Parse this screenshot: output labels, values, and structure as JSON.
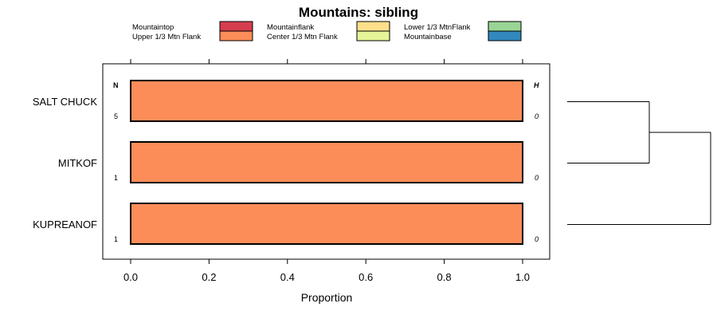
{
  "chart_data": {
    "type": "bar",
    "orientation": "horizontal",
    "stacked": true,
    "title": "Mountains: sibling",
    "xlabel": "Proportion",
    "ylabel": "",
    "xlim": [
      0,
      1
    ],
    "xticks": [
      0.0,
      0.2,
      0.4,
      0.6,
      0.8,
      1.0
    ],
    "xtick_labels": [
      "0.0",
      "0.2",
      "0.4",
      "0.6",
      "0.8",
      "1.0"
    ],
    "categories": [
      "SALT CHUCK",
      "MITKOF",
      "KUPREANOF"
    ],
    "n_header": "N",
    "h_header": "H",
    "n_values": [
      "5",
      "1",
      "1"
    ],
    "h_values": [
      "0",
      "0",
      "0"
    ],
    "legend": [
      {
        "name": "Mountaintop",
        "color": "#d53e4f"
      },
      {
        "name": "Upper 1/3 Mtn Flank",
        "color": "#fc8d59"
      },
      {
        "name": "Mountainflank",
        "color": "#fee08b"
      },
      {
        "name": "Center 1/3 Mtn Flank",
        "color": "#e6f598"
      },
      {
        "name": "Lower 1/3 MtnFlank",
        "color": "#99d594"
      },
      {
        "name": "Mountainbase",
        "color": "#3288bd"
      }
    ],
    "series": [
      {
        "name": "Mountaintop",
        "values": [
          0,
          0,
          0
        ]
      },
      {
        "name": "Upper 1/3 Mtn Flank",
        "values": [
          1.0,
          1.0,
          1.0
        ]
      },
      {
        "name": "Mountainflank",
        "values": [
          0,
          0,
          0
        ]
      },
      {
        "name": "Center 1/3 Mtn Flank",
        "values": [
          0,
          0,
          0
        ]
      },
      {
        "name": "Lower 1/3 MtnFlank",
        "values": [
          0,
          0,
          0
        ]
      },
      {
        "name": "Mountainbase",
        "values": [
          0,
          0,
          0
        ]
      }
    ],
    "dendrogram": {
      "merges": [
        [
          "SALT CHUCK",
          "MITKOF"
        ],
        [
          "SALT CHUCK+MITKOF",
          "KUPREANOF"
        ]
      ]
    }
  }
}
